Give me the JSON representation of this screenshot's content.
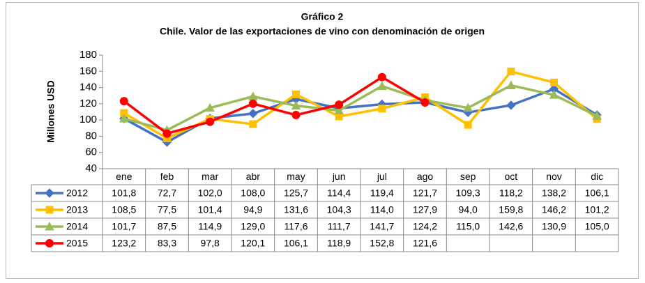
{
  "chart_data": {
    "type": "line",
    "title": "Gráfico 2",
    "subtitle": "Chile. Valor de las exportaciones de vino con denominación de origen",
    "y_label": "Millones USD",
    "categories": [
      "ene",
      "feb",
      "mar",
      "abr",
      "may",
      "jun",
      "jul",
      "ago",
      "sep",
      "oct",
      "nov",
      "dic"
    ],
    "ylim": [
      40,
      180
    ],
    "yticks": [
      40,
      60,
      80,
      100,
      120,
      140,
      160,
      180
    ],
    "grid": false,
    "series": [
      {
        "name": "2012",
        "color": "#4472c4",
        "marker": "diamond",
        "values": [
          101.8,
          72.7,
          102.0,
          108.0,
          125.7,
          114.4,
          119.4,
          121.7,
          109.3,
          118.2,
          138.2,
          106.1
        ],
        "value_labels": [
          "101,8",
          "72,7",
          "102,0",
          "108,0",
          "125,7",
          "114,4",
          "119,4",
          "121,7",
          "109,3",
          "118,2",
          "138,2",
          "106,1"
        ]
      },
      {
        "name": "2013",
        "color": "#ffc000",
        "marker": "square",
        "values": [
          108.5,
          77.5,
          101.4,
          94.9,
          131.6,
          104.3,
          114.0,
          127.9,
          94.0,
          159.8,
          146.2,
          101.2
        ],
        "value_labels": [
          "108,5",
          "77,5",
          "101,4",
          "94,9",
          "131,6",
          "104,3",
          "114,0",
          "127,9",
          "94,0",
          "159,8",
          "146,2",
          "101,2"
        ]
      },
      {
        "name": "2014",
        "color": "#9bbb59",
        "marker": "triangle",
        "values": [
          101.7,
          87.5,
          114.9,
          129.0,
          117.6,
          111.7,
          141.7,
          124.2,
          115.0,
          142.6,
          130.9,
          105.0
        ],
        "value_labels": [
          "101,7",
          "87,5",
          "114,9",
          "129,0",
          "117,6",
          "111,7",
          "141,7",
          "124,2",
          "115,0",
          "142,6",
          "130,9",
          "105,0"
        ]
      },
      {
        "name": "2015",
        "color": "#ff0000",
        "marker": "circle",
        "values": [
          123.2,
          83.3,
          97.8,
          120.1,
          106.1,
          118.9,
          152.8,
          121.6,
          null,
          null,
          null,
          null
        ],
        "value_labels": [
          "123,2",
          "83,3",
          "97,8",
          "120,1",
          "106,1",
          "118,9",
          "152,8",
          "121,6",
          null,
          null,
          null,
          null
        ]
      }
    ]
  }
}
